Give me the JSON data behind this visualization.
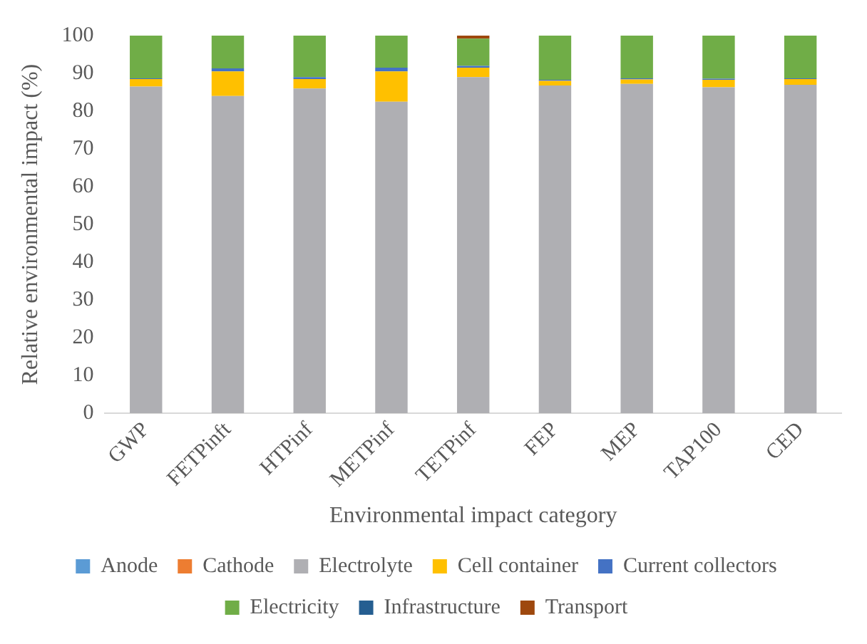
{
  "chart_data": {
    "type": "bar",
    "stacked": true,
    "xlabel": "Environmental impact category",
    "ylabel": "Relative environmental impact (%)",
    "categories": [
      "GWP",
      "FETPinft",
      "HTPinf",
      "METPinf",
      "TETPinf",
      "FEP",
      "MEP",
      "TAP100",
      "CED"
    ],
    "series": [
      {
        "name": "Anode",
        "color": "#5b9bd5",
        "values": [
          null,
          null,
          null,
          null,
          null,
          null,
          null,
          null,
          null
        ]
      },
      {
        "name": "Cathode",
        "color": "#ed7d31",
        "values": [
          null,
          null,
          null,
          null,
          null,
          null,
          null,
          null,
          null
        ]
      },
      {
        "name": "Electrolyte",
        "color": "#afafb3",
        "values": [
          86.5,
          84,
          86,
          82.5,
          89,
          86.8,
          87.2,
          86.3,
          87
        ]
      },
      {
        "name": "Cell container",
        "color": "#ffc000",
        "values": [
          2,
          6.5,
          2.5,
          8,
          2.5,
          1.2,
          1.2,
          2,
          1.5
        ]
      },
      {
        "name": "Current collectors",
        "color": "#4472c4",
        "values": [
          0.2,
          0.8,
          0.5,
          1,
          0.5,
          0.3,
          0.3,
          0.3,
          0.2
        ]
      },
      {
        "name": "Electricity",
        "color": "#70ad47",
        "values": [
          11.3,
          8.7,
          11,
          8.5,
          7.2,
          11.7,
          11.3,
          11.4,
          11.3
        ]
      },
      {
        "name": "Infrastructure",
        "color": "#255e91",
        "values": [
          null,
          null,
          null,
          null,
          null,
          null,
          null,
          null,
          null
        ]
      },
      {
        "name": "Transport",
        "color": "#9e480e",
        "values": [
          null,
          null,
          null,
          null,
          0.8,
          null,
          null,
          null,
          null
        ]
      }
    ],
    "ylim": [
      0,
      100
    ],
    "yticks": [
      0,
      10,
      20,
      30,
      40,
      50,
      60,
      70,
      80,
      90,
      100
    ],
    "grid": false,
    "legend": "bottom"
  }
}
